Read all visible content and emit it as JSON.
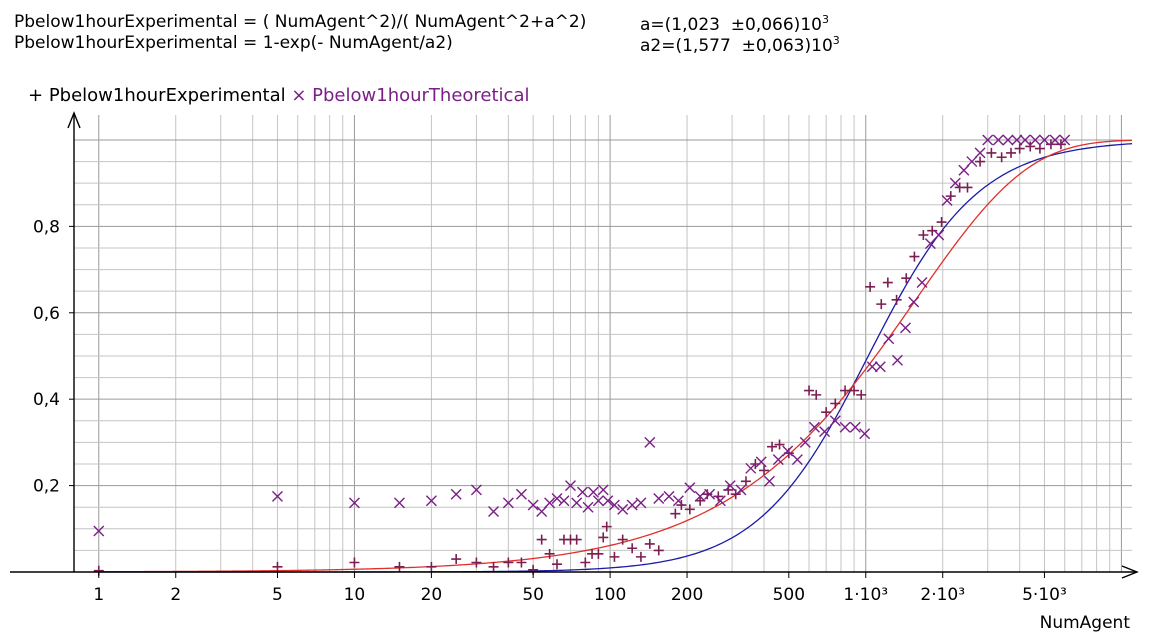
{
  "fit": {
    "formula1": "Pbelow1hourExperimental = ( NumAgent^2)/( NumAgent^2+a^2)",
    "formula2": "Pbelow1hourExperimental = 1-exp(- NumAgent/a2)",
    "param1_prefix": "a=(1,023  ±0,066)10",
    "param1_exp": "3",
    "param2_prefix": "a2=(1,577  ±0,063)10",
    "param2_exp": "3",
    "a": 1023,
    "a2": 1577,
    "curve1_color": "#1b1ba8",
    "curve2_color": "#e0302a"
  },
  "chart_data": {
    "type": "scatter",
    "xlabel": "NumAgent",
    "ylabel": "",
    "x_scale": "log",
    "xlim": [
      0.8,
      11000
    ],
    "ylim": [
      0,
      1.03
    ],
    "grid": true,
    "legend_position": "top-left",
    "x_tick_labels": [
      {
        "value": 1,
        "label": "1"
      },
      {
        "value": 2,
        "label": "2"
      },
      {
        "value": 5,
        "label": "5"
      },
      {
        "value": 10,
        "label": "10"
      },
      {
        "value": 20,
        "label": "20"
      },
      {
        "value": 50,
        "label": "50"
      },
      {
        "value": 100,
        "label": "100"
      },
      {
        "value": 200,
        "label": "200"
      },
      {
        "value": 500,
        "label": "500"
      },
      {
        "value": 1000,
        "label": "1·10³"
      },
      {
        "value": 2000,
        "label": "2·10³"
      },
      {
        "value": 5000,
        "label": "5·10³"
      }
    ],
    "y_tick_labels": [
      {
        "value": 0.2,
        "label": "0,2"
      },
      {
        "value": 0.4,
        "label": "0,4"
      },
      {
        "value": 0.6,
        "label": "0,6"
      },
      {
        "value": 0.8,
        "label": "0,8"
      }
    ],
    "series": [
      {
        "name": "Pbelow1hourExperimental",
        "marker": "+",
        "color": "#7a1f50",
        "points": [
          [
            1,
            0.003
          ],
          [
            5,
            0.012
          ],
          [
            10,
            0.022
          ],
          [
            15,
            0.012
          ],
          [
            20,
            0.012
          ],
          [
            25,
            0.03
          ],
          [
            30,
            0.022
          ],
          [
            35,
            0.012
          ],
          [
            40,
            0.022
          ],
          [
            45,
            0.022
          ],
          [
            50,
            0.005
          ],
          [
            54,
            0.075
          ],
          [
            58,
            0.042
          ],
          [
            62,
            0.018
          ],
          [
            66,
            0.075
          ],
          [
            70,
            0.075
          ],
          [
            74,
            0.075
          ],
          [
            80,
            0.022
          ],
          [
            85,
            0.042
          ],
          [
            90,
            0.042
          ],
          [
            94,
            0.08
          ],
          [
            97,
            0.105
          ],
          [
            104,
            0.035
          ],
          [
            112,
            0.075
          ],
          [
            122,
            0.055
          ],
          [
            132,
            0.035
          ],
          [
            143,
            0.065
          ],
          [
            155,
            0.05
          ],
          [
            180,
            0.135
          ],
          [
            190,
            0.155
          ],
          [
            205,
            0.145
          ],
          [
            225,
            0.165
          ],
          [
            240,
            0.18
          ],
          [
            265,
            0.175
          ],
          [
            290,
            0.19
          ],
          [
            310,
            0.18
          ],
          [
            340,
            0.21
          ],
          [
            370,
            0.25
          ],
          [
            400,
            0.235
          ],
          [
            430,
            0.29
          ],
          [
            460,
            0.295
          ],
          [
            500,
            0.275
          ],
          [
            600,
            0.42
          ],
          [
            640,
            0.41
          ],
          [
            700,
            0.37
          ],
          [
            760,
            0.39
          ],
          [
            830,
            0.42
          ],
          [
            900,
            0.42
          ],
          [
            960,
            0.41
          ],
          [
            1040,
            0.66
          ],
          [
            1150,
            0.62
          ],
          [
            1220,
            0.67
          ],
          [
            1320,
            0.63
          ],
          [
            1440,
            0.68
          ],
          [
            1550,
            0.73
          ],
          [
            1680,
            0.78
          ],
          [
            1820,
            0.79
          ],
          [
            1980,
            0.81
          ],
          [
            2150,
            0.87
          ],
          [
            2330,
            0.89
          ],
          [
            2500,
            0.89
          ],
          [
            2800,
            0.95
          ],
          [
            3100,
            0.97
          ],
          [
            3400,
            0.96
          ],
          [
            3700,
            0.97
          ],
          [
            4000,
            0.98
          ],
          [
            4400,
            0.985
          ],
          [
            4800,
            0.98
          ],
          [
            5300,
            0.99
          ],
          [
            5800,
            0.99
          ]
        ]
      },
      {
        "name": "Pbelow1hourTheoretical",
        "marker": "x",
        "color": "#7a1f86",
        "points": [
          [
            1,
            0.095
          ],
          [
            5,
            0.175
          ],
          [
            10,
            0.16
          ],
          [
            15,
            0.16
          ],
          [
            20,
            0.165
          ],
          [
            25,
            0.18
          ],
          [
            30,
            0.19
          ],
          [
            35,
            0.14
          ],
          [
            40,
            0.16
          ],
          [
            45,
            0.18
          ],
          [
            50,
            0.155
          ],
          [
            54,
            0.14
          ],
          [
            58,
            0.16
          ],
          [
            62,
            0.17
          ],
          [
            66,
            0.165
          ],
          [
            70,
            0.2
          ],
          [
            74,
            0.16
          ],
          [
            78,
            0.185
          ],
          [
            82,
            0.15
          ],
          [
            86,
            0.185
          ],
          [
            90,
            0.165
          ],
          [
            94,
            0.19
          ],
          [
            98,
            0.165
          ],
          [
            104,
            0.155
          ],
          [
            112,
            0.145
          ],
          [
            122,
            0.155
          ],
          [
            132,
            0.16
          ],
          [
            143,
            0.3
          ],
          [
            155,
            0.17
          ],
          [
            170,
            0.175
          ],
          [
            185,
            0.165
          ],
          [
            205,
            0.195
          ],
          [
            225,
            0.175
          ],
          [
            245,
            0.18
          ],
          [
            270,
            0.165
          ],
          [
            295,
            0.2
          ],
          [
            325,
            0.19
          ],
          [
            355,
            0.24
          ],
          [
            390,
            0.255
          ],
          [
            420,
            0.21
          ],
          [
            455,
            0.26
          ],
          [
            495,
            0.28
          ],
          [
            540,
            0.26
          ],
          [
            580,
            0.3
          ],
          [
            630,
            0.335
          ],
          [
            690,
            0.325
          ],
          [
            760,
            0.35
          ],
          [
            830,
            0.335
          ],
          [
            910,
            0.335
          ],
          [
            990,
            0.32
          ],
          [
            1060,
            0.475
          ],
          [
            1140,
            0.475
          ],
          [
            1230,
            0.54
          ],
          [
            1330,
            0.49
          ],
          [
            1430,
            0.565
          ],
          [
            1540,
            0.625
          ],
          [
            1660,
            0.67
          ],
          [
            1790,
            0.76
          ],
          [
            1930,
            0.78
          ],
          [
            2080,
            0.86
          ],
          [
            2240,
            0.9
          ],
          [
            2420,
            0.93
          ],
          [
            2600,
            0.95
          ],
          [
            2800,
            0.97
          ],
          [
            3000,
            1.0
          ],
          [
            3300,
            1.0
          ],
          [
            3600,
            1.0
          ],
          [
            3900,
            1.0
          ],
          [
            4200,
            1.0
          ],
          [
            4600,
            1.0
          ],
          [
            5000,
            1.0
          ],
          [
            5500,
            1.0
          ],
          [
            6000,
            1.0
          ]
        ]
      }
    ]
  }
}
